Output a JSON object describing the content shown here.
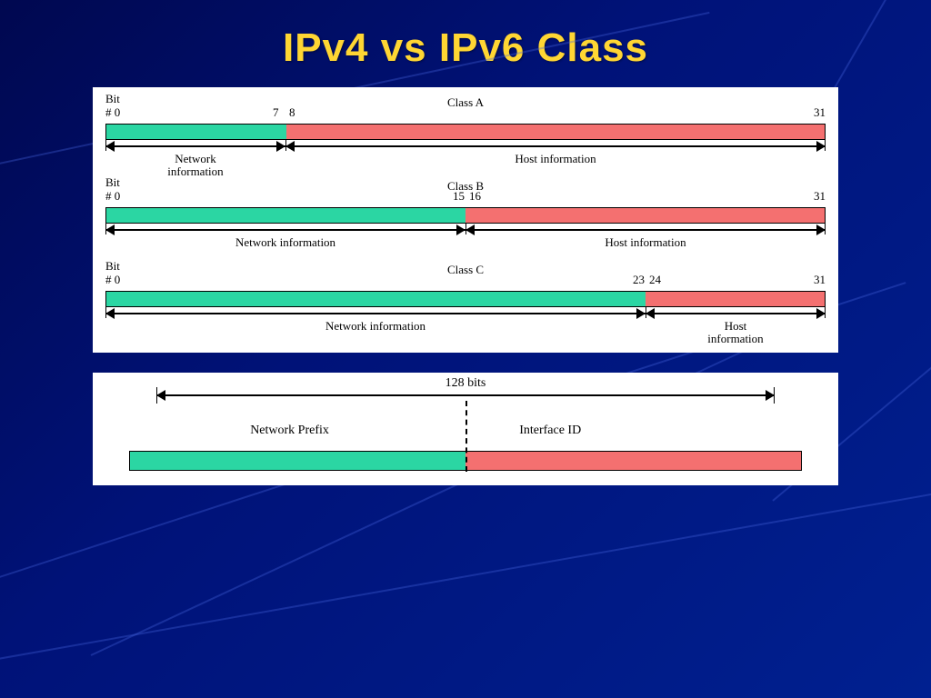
{
  "title": "IPv4 vs IPv6 Class",
  "colors": {
    "network": "#2bd6a3",
    "host": "#f47070",
    "panel_bg": "#ffffff",
    "title_color": "#ffd633"
  },
  "ipv4": {
    "total_bits": 32,
    "classes": [
      {
        "name": "Class A",
        "bit_label": "Bit",
        "start": "# 0",
        "split_left": "7",
        "split_right": "8",
        "end": "31",
        "network_pct": 25,
        "host_pct": 75,
        "net_label": "Network\ninformation",
        "host_label": "Host information"
      },
      {
        "name": "Class B",
        "bit_label": "Bit",
        "start": "# 0",
        "split_left": "15",
        "split_right": "16",
        "end": "31",
        "network_pct": 50,
        "host_pct": 50,
        "net_label": "Network information",
        "host_label": "Host information"
      },
      {
        "name": "Class C",
        "bit_label": "Bit",
        "start": "# 0",
        "split_left": "23",
        "split_right": "24",
        "end": "31",
        "network_pct": 75,
        "host_pct": 25,
        "net_label": "Network information",
        "host_label": "Host\ninformation"
      }
    ]
  },
  "ipv6": {
    "total_bits_label": "128 bits",
    "network_label": "Network Prefix",
    "interface_label": "Interface ID",
    "network_pct": 50,
    "host_pct": 50
  }
}
